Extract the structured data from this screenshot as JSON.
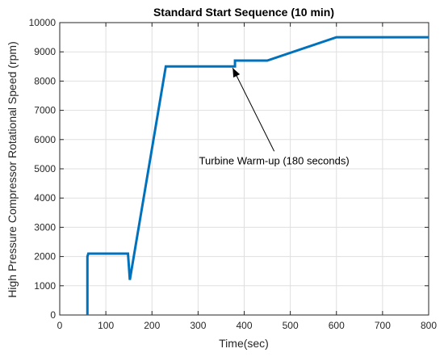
{
  "chart_data": {
    "type": "line",
    "title": "Standard Start Sequence (10 min)",
    "xlabel": "Time(sec)",
    "ylabel": "High Pressure Compressor Rotational Speed (rpm)",
    "xlim": [
      0,
      800
    ],
    "ylim": [
      0,
      10000
    ],
    "xticks": [
      0,
      100,
      200,
      300,
      400,
      500,
      600,
      700,
      800
    ],
    "yticks": [
      0,
      1000,
      2000,
      3000,
      4000,
      5000,
      6000,
      7000,
      8000,
      9000,
      10000
    ],
    "grid": true,
    "series": [
      {
        "x": [
          60,
          60,
          62,
          148,
          152,
          230,
          380,
          380,
          450,
          600,
          800
        ],
        "y": [
          0,
          2000,
          2100,
          2100,
          1200,
          8500,
          8500,
          8700,
          8700,
          9500,
          9500
        ]
      }
    ],
    "annotations": [
      {
        "text": "Turbine Warm-up (180 seconds)",
        "arrow_to": [
          375,
          8450
        ],
        "arrow_from": [
          465,
          5600
        ]
      }
    ]
  },
  "colors": {
    "line": "#0072BD",
    "grid": "#dfdfdf",
    "axis": "#262626",
    "annotation": "#000000"
  }
}
